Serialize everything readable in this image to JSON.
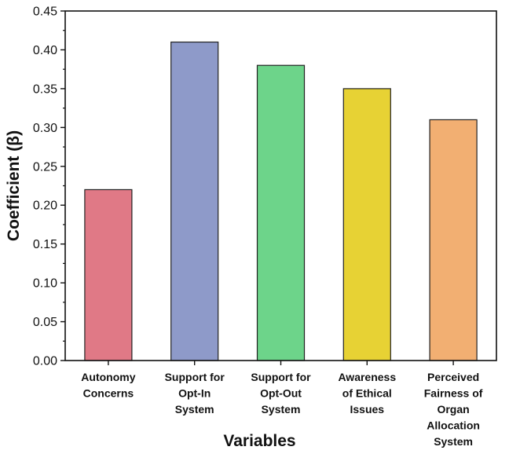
{
  "chart_data": {
    "type": "bar",
    "title": "",
    "xlabel": "Variables",
    "ylabel": "Coefficient (β)",
    "ylim": [
      0,
      0.45
    ],
    "yticks": [
      "0.00",
      "0.05",
      "0.10",
      "0.15",
      "0.20",
      "0.25",
      "0.30",
      "0.35",
      "0.40",
      "0.45"
    ],
    "grid": false,
    "legend": "none",
    "categories": [
      [
        "Autonomy",
        "Concerns"
      ],
      [
        "Support for",
        "Opt-In",
        "System"
      ],
      [
        "Support for",
        "Opt-Out",
        "System"
      ],
      [
        "Awareness",
        "of Ethical",
        "Issues"
      ],
      [
        "Perceived",
        "Fairness of",
        "Organ",
        "Allocation",
        "System"
      ]
    ],
    "values": [
      0.22,
      0.41,
      0.38,
      0.35,
      0.31
    ],
    "colors": [
      "#e07986",
      "#8e9ac9",
      "#6dd48a",
      "#e7d234",
      "#f2af72"
    ]
  }
}
